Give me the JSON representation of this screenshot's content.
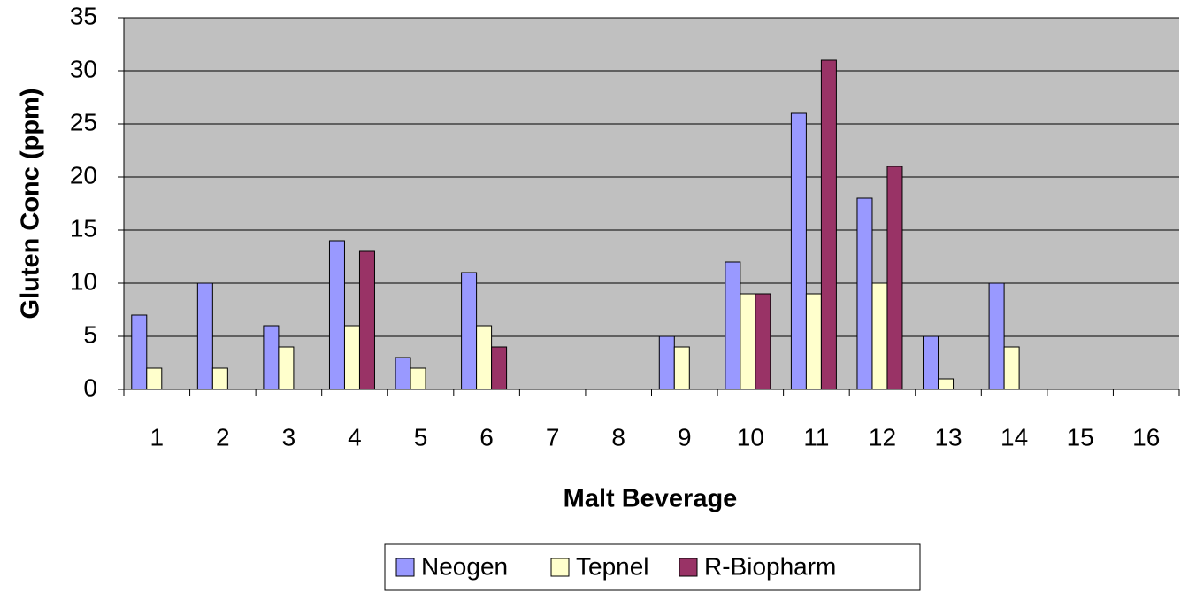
{
  "chart_data": {
    "type": "bar",
    "x_label": "Malt Beverage",
    "y_label": "Gluten Conc (ppm)",
    "categories": [
      "1",
      "2",
      "3",
      "4",
      "5",
      "6",
      "7",
      "8",
      "9",
      "10",
      "11",
      "12",
      "13",
      "14",
      "15",
      "16"
    ],
    "series": [
      {
        "name": "Neogen",
        "color": "#9999ff",
        "values": [
          7,
          10,
          6,
          14,
          3,
          11,
          null,
          null,
          5,
          12,
          26,
          18,
          5,
          10,
          null,
          null
        ]
      },
      {
        "name": "Tepnel",
        "color": "#ffffcc",
        "values": [
          2,
          2,
          4,
          6,
          2,
          6,
          null,
          null,
          4,
          9,
          9,
          10,
          1,
          4,
          null,
          null
        ]
      },
      {
        "name": "R-Biopharm",
        "color": "#993366",
        "values": [
          null,
          null,
          null,
          13,
          null,
          4,
          null,
          null,
          null,
          9,
          31,
          21,
          null,
          null,
          null,
          null
        ]
      }
    ],
    "ylim": [
      0,
      35
    ],
    "yticks": [
      0,
      5,
      10,
      15,
      20,
      25,
      30,
      35
    ],
    "grid": true,
    "plot_background": "#c0c0c0",
    "legend": "bottom"
  }
}
